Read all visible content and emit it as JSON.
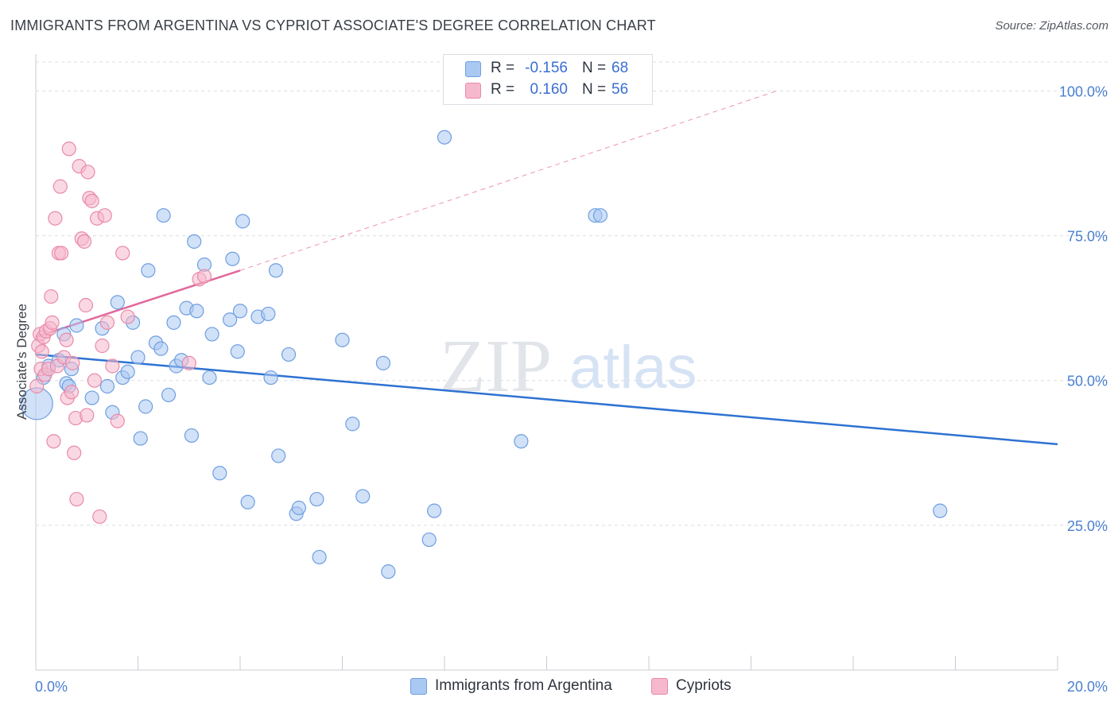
{
  "title": "IMMIGRANTS FROM ARGENTINA VS CYPRIOT ASSOCIATE'S DEGREE CORRELATION CHART",
  "source": "Source: ZipAtlas.com",
  "watermark": {
    "zip": "ZIP",
    "atlas": "atlas"
  },
  "legend": {
    "r_label": "R =",
    "n_label": "N =",
    "entries": [
      {
        "r": "-0.156",
        "n": "68"
      },
      {
        "r": "0.160",
        "n": "56"
      }
    ]
  },
  "bottom_legend": [
    "Immigrants from Argentina",
    "Cypriots"
  ],
  "colors": {
    "blue_fill": "#a9c8f2",
    "blue_stroke": "#6f9fe0",
    "blue_line": "#2e72d2",
    "pink_fill": "#f6b8cc",
    "pink_stroke": "#e98aa8",
    "pink_line": "#e2679a",
    "grid": "#d9dde3",
    "tick_text": "#4a7fd0"
  },
  "chart_data": {
    "type": "scatter",
    "title": "IMMIGRANTS FROM ARGENTINA VS CYPRIOT ASSOCIATE'S DEGREE CORRELATION CHART",
    "xlabel": "",
    "ylabel": "Associate's Degree",
    "xlim": [
      0,
      20
    ],
    "ylim": [
      0,
      105
    ],
    "x_ticks_labeled": [
      {
        "value": 0,
        "label": "0.0%"
      },
      {
        "value": 20,
        "label": "20.0%"
      }
    ],
    "x_minor_ticks": [
      2,
      4,
      6,
      8,
      10,
      12,
      14,
      16,
      18
    ],
    "y_ticks": [
      {
        "value": 25,
        "label": "25.0%"
      },
      {
        "value": 50,
        "label": "50.0%"
      },
      {
        "value": 75,
        "label": "75.0%"
      },
      {
        "value": 100,
        "label": "100.0%"
      }
    ],
    "grid": true,
    "legend_position": "top-center",
    "series": [
      {
        "name": "Immigrants from Argentina",
        "color": "#a9c8f2",
        "points": [
          [
            0.02,
            46.0
          ],
          [
            0.15,
            50.5
          ],
          [
            0.25,
            52.5
          ],
          [
            0.45,
            53.5
          ],
          [
            0.55,
            58.0
          ],
          [
            0.6,
            49.5
          ],
          [
            0.65,
            49.0
          ],
          [
            0.7,
            52.0
          ],
          [
            0.8,
            59.5
          ],
          [
            1.1,
            47.0
          ],
          [
            1.3,
            59.0
          ],
          [
            1.4,
            49.0
          ],
          [
            1.5,
            44.5
          ],
          [
            1.6,
            63.5
          ],
          [
            1.7,
            50.5
          ],
          [
            1.8,
            51.5
          ],
          [
            1.9,
            60.0
          ],
          [
            2.0,
            54.0
          ],
          [
            2.05,
            40.0
          ],
          [
            2.15,
            45.5
          ],
          [
            2.2,
            69.0
          ],
          [
            2.35,
            56.5
          ],
          [
            2.45,
            55.5
          ],
          [
            2.5,
            78.5
          ],
          [
            2.6,
            47.5
          ],
          [
            2.7,
            60.0
          ],
          [
            2.75,
            52.5
          ],
          [
            2.85,
            53.5
          ],
          [
            2.95,
            62.5
          ],
          [
            3.05,
            40.5
          ],
          [
            3.1,
            74.0
          ],
          [
            3.15,
            62.0
          ],
          [
            3.3,
            70.0
          ],
          [
            3.4,
            50.5
          ],
          [
            3.45,
            58.0
          ],
          [
            3.6,
            34.0
          ],
          [
            3.8,
            60.5
          ],
          [
            3.85,
            71.0
          ],
          [
            3.95,
            55.0
          ],
          [
            4.0,
            62.0
          ],
          [
            4.05,
            77.5
          ],
          [
            4.15,
            29.0
          ],
          [
            4.35,
            61.0
          ],
          [
            4.55,
            61.5
          ],
          [
            4.6,
            50.5
          ],
          [
            4.7,
            69.0
          ],
          [
            4.75,
            37.0
          ],
          [
            4.95,
            54.5
          ],
          [
            5.1,
            27.0
          ],
          [
            5.15,
            28.0
          ],
          [
            5.5,
            29.5
          ],
          [
            5.55,
            19.5
          ],
          [
            6.0,
            57.0
          ],
          [
            6.2,
            42.5
          ],
          [
            6.4,
            30.0
          ],
          [
            6.8,
            53.0
          ],
          [
            6.9,
            17.0
          ],
          [
            7.7,
            22.5
          ],
          [
            7.8,
            27.5
          ],
          [
            8.0,
            92.0
          ],
          [
            9.5,
            39.5
          ],
          [
            10.95,
            78.5
          ],
          [
            11.05,
            78.5
          ],
          [
            17.7,
            27.5
          ]
        ]
      },
      {
        "name": "Cypriots",
        "color": "#f6b8cc",
        "points": [
          [
            0.02,
            49.0
          ],
          [
            0.05,
            56.0
          ],
          [
            0.08,
            58.0
          ],
          [
            0.1,
            52.0
          ],
          [
            0.12,
            55.0
          ],
          [
            0.15,
            57.5
          ],
          [
            0.18,
            51.0
          ],
          [
            0.2,
            58.5
          ],
          [
            0.25,
            52.0
          ],
          [
            0.28,
            59.0
          ],
          [
            0.3,
            64.5
          ],
          [
            0.32,
            60.0
          ],
          [
            0.35,
            39.5
          ],
          [
            0.38,
            78.0
          ],
          [
            0.42,
            52.5
          ],
          [
            0.45,
            72.0
          ],
          [
            0.48,
            83.5
          ],
          [
            0.5,
            72.0
          ],
          [
            0.55,
            54.0
          ],
          [
            0.6,
            57.0
          ],
          [
            0.62,
            47.0
          ],
          [
            0.65,
            90.0
          ],
          [
            0.7,
            48.0
          ],
          [
            0.72,
            53.0
          ],
          [
            0.75,
            37.5
          ],
          [
            0.78,
            43.5
          ],
          [
            0.8,
            29.5
          ],
          [
            0.85,
            87.0
          ],
          [
            0.9,
            74.5
          ],
          [
            0.95,
            74.0
          ],
          [
            0.98,
            63.0
          ],
          [
            1.0,
            44.0
          ],
          [
            1.02,
            86.0
          ],
          [
            1.05,
            81.5
          ],
          [
            1.1,
            81.0
          ],
          [
            1.15,
            50.0
          ],
          [
            1.2,
            78.0
          ],
          [
            1.25,
            26.5
          ],
          [
            1.3,
            56.0
          ],
          [
            1.35,
            78.5
          ],
          [
            1.4,
            60.0
          ],
          [
            1.5,
            52.5
          ],
          [
            1.6,
            43.0
          ],
          [
            1.7,
            72.0
          ],
          [
            1.8,
            61.0
          ],
          [
            3.0,
            53.0
          ],
          [
            3.2,
            67.5
          ],
          [
            3.3,
            68.0
          ]
        ]
      }
    ],
    "trend_lines": [
      {
        "series": "Immigrants from Argentina",
        "x": [
          0,
          20
        ],
        "y": [
          54.5,
          39.0
        ],
        "style": "solid"
      },
      {
        "series": "Cypriots",
        "x": [
          0,
          4
        ],
        "y": [
          57.5,
          69.0
        ],
        "style": "solid"
      },
      {
        "series": "Cypriots",
        "x": [
          4,
          14.5
        ],
        "y": [
          69.0,
          100.0
        ],
        "style": "dashed"
      }
    ]
  }
}
